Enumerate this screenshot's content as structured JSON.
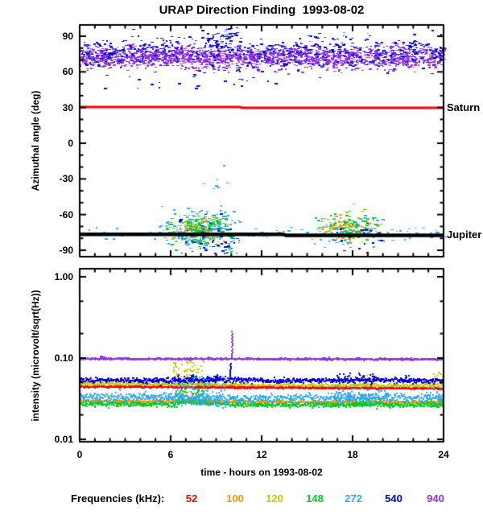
{
  "title": "URAP Direction Finding  1993-08-02",
  "colors": {
    "background": "#ffffff",
    "axis": "#000000",
    "text": "#000000"
  },
  "legend": {
    "label": "Frequencies (kHz):",
    "items": [
      {
        "value": "52",
        "color": "#ff0000"
      },
      {
        "value": "100",
        "color": "#ff9900"
      },
      {
        "value": "120",
        "color": "#c9c900"
      },
      {
        "value": "148",
        "color": "#00cc22"
      },
      {
        "value": "272",
        "color": "#2fa8ff"
      },
      {
        "value": "540",
        "color": "#0000e0"
      },
      {
        "value": "940",
        "color": "#8f33e6"
      }
    ]
  },
  "chart_data": [
    {
      "type": "scatter",
      "panel": "top",
      "ylabel": "Azimuthal angle (deg)",
      "xlim": [
        0,
        24
      ],
      "ylim": [
        -95,
        100
      ],
      "yticks": [
        90,
        60,
        30,
        0,
        -30,
        -60,
        -90
      ],
      "ytick_minor_step": 10,
      "xticks": [
        0,
        6,
        12,
        18,
        24
      ],
      "xtick_minor_step": 1,
      "grid": false,
      "reference_lines": [
        {
          "label": "Saturn",
          "color": "#ff0000",
          "width": 3,
          "points": [
            [
              0,
              30.4
            ],
            [
              10.55,
              30.4
            ],
            [
              10.75,
              29.8
            ],
            [
              24,
              29.8
            ]
          ]
        },
        {
          "label": "Jupiter",
          "color": "#000000",
          "width": 4.5,
          "points": [
            [
              0,
              -76.6
            ],
            [
              13.4,
              -76.6
            ],
            [
              13.6,
              -77.4
            ],
            [
              24,
              -77.4
            ]
          ]
        }
      ],
      "scatter_series": [
        {
          "freq_khz": 540,
          "n": 1000,
          "x_range": [
            0,
            24
          ],
          "y_mean": 76,
          "y_sd": 6.5,
          "y_clip": [
            55,
            97
          ],
          "desc": "spacecraft-roll band"
        },
        {
          "freq_khz": 940,
          "n": 1300,
          "x_range": [
            0,
            24
          ],
          "y_mean": 72.5,
          "y_sd": 4.5,
          "y_clip": [
            58,
            86
          ],
          "desc": "spacecraft-roll band"
        },
        {
          "freq_khz": 540,
          "n": 40,
          "x_mean": 9.5,
          "x_sd": 0.7,
          "x_clip": [
            8.3,
            10.6
          ],
          "y_mean": 89,
          "y_sd": 3.5,
          "y_clip": [
            82,
            99
          ],
          "desc": "high outliers near hour 9-10"
        },
        {
          "freq_khz": 540,
          "n": 22,
          "x_range": [
            1.5,
            14
          ],
          "y_mean": 52,
          "y_sd": 5,
          "y_clip": [
            38,
            60
          ],
          "desc": "sparse low outliers"
        },
        {
          "freq_khz": 272,
          "n": 3,
          "x_range": [
            9,
            21
          ],
          "y_mean": 92,
          "y_sd": 3,
          "y_clip": [
            86,
            97
          ],
          "desc": "isolated top points"
        },
        {
          "freq_khz": 272,
          "n": 85,
          "x_range": [
            0,
            24
          ],
          "y_mean": -76,
          "y_sd": 2.8,
          "y_clip": [
            -85,
            -66
          ],
          "desc": "sparse along Jupiter line"
        },
        {
          "freq_khz": 272,
          "n": 240,
          "x_mean": 7.9,
          "x_sd": 1.2,
          "x_clip": [
            5.2,
            10.8
          ],
          "y_mean": -73,
          "y_sd": 8,
          "y_clip": [
            -95,
            -42
          ],
          "desc": "Jupiter event hours 6-10"
        },
        {
          "freq_khz": 148,
          "n": 210,
          "x_mean": 7.9,
          "x_sd": 1.1,
          "x_clip": [
            5.4,
            10.6
          ],
          "y_mean": -72.5,
          "y_sd": 6.5,
          "y_clip": [
            -95,
            -45
          ],
          "desc": "Jupiter event hours 6-10"
        },
        {
          "freq_khz": 540,
          "n": 50,
          "x_mean": 8.6,
          "x_sd": 1.2,
          "x_clip": [
            5.8,
            10.8
          ],
          "y_mean": -79,
          "y_sd": 9,
          "y_clip": [
            -95,
            -50
          ],
          "desc": "Jupiter event hours 6-10"
        },
        {
          "freq_khz": 100,
          "n": 42,
          "x_mean": 7.8,
          "x_sd": 1.1,
          "x_clip": [
            5.5,
            10.5
          ],
          "y_mean": -71,
          "y_sd": 6,
          "y_clip": [
            -88,
            -52
          ],
          "desc": "Jupiter event hours 6-10"
        },
        {
          "freq_khz": 120,
          "n": 22,
          "x_mean": 7.6,
          "x_sd": 1.0,
          "x_clip": [
            5.6,
            10.2
          ],
          "y_mean": -73,
          "y_sd": 5,
          "y_clip": [
            -86,
            -58
          ],
          "desc": "Jupiter event hours 6-10"
        },
        {
          "freq_khz": 540,
          "n": 14,
          "x_mean": 9.9,
          "x_sd": 0.25,
          "x_clip": [
            9.3,
            10.4
          ],
          "y_mean": -85,
          "y_sd": 6,
          "y_clip": [
            -95,
            -62
          ],
          "desc": "deep string near hour 10"
        },
        {
          "freq_khz": 272,
          "n": 8,
          "x_mean": 9.0,
          "x_sd": 0.8,
          "x_clip": [
            7.5,
            10.5
          ],
          "y_mean": -35,
          "y_sd": 8,
          "y_clip": [
            -50,
            -18
          ],
          "desc": "stray points above event"
        },
        {
          "freq_khz": 148,
          "n": 6,
          "x_mean": 9.8,
          "x_sd": 0.4,
          "x_clip": [
            9,
            10.5
          ],
          "y_mean": -92,
          "y_sd": 3,
          "y_clip": [
            -95,
            -85
          ],
          "desc": "deep points"
        },
        {
          "freq_khz": 272,
          "n": 95,
          "x_mean": 17.7,
          "x_sd": 1.1,
          "x_clip": [
            15.4,
            20.2
          ],
          "y_mean": -74,
          "y_sd": 6,
          "y_clip": [
            -92,
            -52
          ],
          "desc": "Jupiter event hours 16-20"
        },
        {
          "freq_khz": 148,
          "n": 120,
          "x_mean": 17.6,
          "x_sd": 1.0,
          "x_clip": [
            15.5,
            20.0
          ],
          "y_mean": -70.5,
          "y_sd": 5.5,
          "y_clip": [
            -88,
            -50
          ],
          "desc": "Jupiter event hours 16-20"
        },
        {
          "freq_khz": 100,
          "n": 55,
          "x_mean": 17.8,
          "x_sd": 1.0,
          "x_clip": [
            15.6,
            20.0
          ],
          "y_mean": -69.5,
          "y_sd": 6,
          "y_clip": [
            -86,
            -50
          ],
          "desc": "Jupiter event hours 16-20"
        },
        {
          "freq_khz": 540,
          "n": 26,
          "x_mean": 18.3,
          "x_sd": 1.0,
          "x_clip": [
            16,
            20.4
          ],
          "y_mean": -79,
          "y_sd": 7,
          "y_clip": [
            -95,
            -60
          ],
          "desc": "Jupiter event hours 16-20"
        },
        {
          "freq_khz": 120,
          "n": 12,
          "x_mean": 17.5,
          "x_sd": 0.9,
          "x_clip": [
            15.8,
            19.6
          ],
          "y_mean": -72,
          "y_sd": 5,
          "y_clip": [
            -84,
            -60
          ],
          "desc": "Jupiter event hours 16-20"
        }
      ]
    },
    {
      "type": "line",
      "panel": "bottom",
      "ylabel": "intensity (microvolt/sqrt(Hz))",
      "xlabel": "time - hours on 1993-08-02",
      "yscale": "log",
      "xlim": [
        0,
        24
      ],
      "ylim": [
        0.0095,
        1.25
      ],
      "yticks": [
        {
          "v": 1.0,
          "label": "1.00"
        },
        {
          "v": 0.1,
          "label": "0.10"
        },
        {
          "v": 0.01,
          "label": "0.01"
        }
      ],
      "ytick_minor": [
        0.5,
        0.2,
        0.05,
        0.02
      ],
      "xticks": [
        0,
        6,
        12,
        18,
        24
      ],
      "xtick_minor_step": 1,
      "grid": false,
      "series": [
        {
          "freq_khz": 120,
          "base": [
            [
              0,
              0.0485
            ],
            [
              6,
              0.0475
            ],
            [
              12,
              0.046
            ],
            [
              24,
              0.0455
            ]
          ],
          "noise": 0.03,
          "windows": [
            {
              "x": [
                6.1,
                8.2
              ],
              "maxf": 1.95,
              "n": 80
            },
            {
              "x": [
                18.3,
                19.6
              ],
              "maxf": 1.35,
              "n": 30
            },
            {
              "x": [
                23.2,
                24
              ],
              "maxf": 1.5,
              "n": 18
            }
          ],
          "spikes": []
        },
        {
          "freq_khz": 52,
          "base": [
            [
              0,
              0.0445
            ],
            [
              10,
              0.0435
            ],
            [
              18,
              0.0425
            ],
            [
              24,
              0.042
            ]
          ],
          "noise": 0.012,
          "windows": [],
          "spikes": []
        },
        {
          "freq_khz": 100,
          "base": [
            [
              0,
              0.0295
            ],
            [
              12,
              0.029
            ],
            [
              24,
              0.0285
            ]
          ],
          "noise": 0.02,
          "windows": [
            {
              "x": [
                6.4,
                7.7
              ],
              "maxf": 1.3,
              "n": 30
            },
            {
              "x": [
                17.5,
                19.3
              ],
              "maxf": 1.15,
              "n": 15
            }
          ],
          "spikes": []
        },
        {
          "freq_khz": 148,
          "base": [
            [
              0,
              0.0275
            ],
            [
              6.2,
              0.027
            ],
            [
              7.2,
              0.0305
            ],
            [
              8.6,
              0.0275
            ],
            [
              12,
              0.0265
            ],
            [
              24,
              0.0265
            ]
          ],
          "noise": 0.035,
          "windows": [
            {
              "x": [
                6.2,
                8.4
              ],
              "maxf": 1.5,
              "n": 70
            },
            {
              "x": [
                17.6,
                19.8
              ],
              "maxf": 1.35,
              "n": 55
            },
            {
              "x": [
                22.9,
                24
              ],
              "maxf": 1.2,
              "n": 18
            }
          ],
          "spikes": []
        },
        {
          "freq_khz": 272,
          "base": [
            [
              0,
              0.0335
            ],
            [
              7,
              0.033
            ],
            [
              10,
              0.0315
            ],
            [
              16,
              0.0325
            ],
            [
              24,
              0.032
            ]
          ],
          "noise": 0.06,
          "windows": [
            {
              "x": [
                5.8,
                9.6
              ],
              "maxf": 1.85,
              "minf": 0.78,
              "n": 150
            },
            {
              "x": [
                16.8,
                20.4
              ],
              "maxf": 1.4,
              "minf": 0.85,
              "n": 80
            },
            {
              "x": [
                22.8,
                24
              ],
              "maxf": 1.35,
              "n": 25
            }
          ],
          "spikes": []
        },
        {
          "freq_khz": 540,
          "base": [
            [
              0,
              0.0535
            ],
            [
              7,
              0.053
            ],
            [
              10,
              0.0545
            ],
            [
              13,
              0.052
            ],
            [
              19,
              0.0535
            ],
            [
              24,
              0.0525
            ]
          ],
          "noise": 0.035,
          "windows": [
            {
              "x": [
                6.0,
                9.5
              ],
              "maxf": 1.18,
              "n": 40
            },
            {
              "x": [
                16.8,
                19.6
              ],
              "maxf": 1.22,
              "n": 35
            },
            {
              "x": [
                21.2,
                21.8
              ],
              "maxf": 1.15,
              "n": 12
            }
          ],
          "spikes": [
            {
              "x": 9.93,
              "vmax": 0.085,
              "n": 10
            }
          ]
        },
        {
          "freq_khz": 940,
          "base": [
            [
              0,
              0.098
            ],
            [
              24,
              0.0965
            ]
          ],
          "noise": 0.012,
          "windows": [
            {
              "x": [
                1.3,
                1.7
              ],
              "maxf": 1.08,
              "n": 10
            },
            {
              "x": [
                8.4,
                8.8
              ],
              "maxf": 1.07,
              "n": 8
            },
            {
              "x": [
                14.6,
                15.0
              ],
              "maxf": 1.05,
              "n": 6
            },
            {
              "x": [
                16.1,
                16.5
              ],
              "maxf": 1.06,
              "n": 6
            }
          ],
          "spikes": [
            {
              "x": 10.05,
              "vmax": 0.21,
              "n": 16
            }
          ]
        }
      ]
    }
  ]
}
